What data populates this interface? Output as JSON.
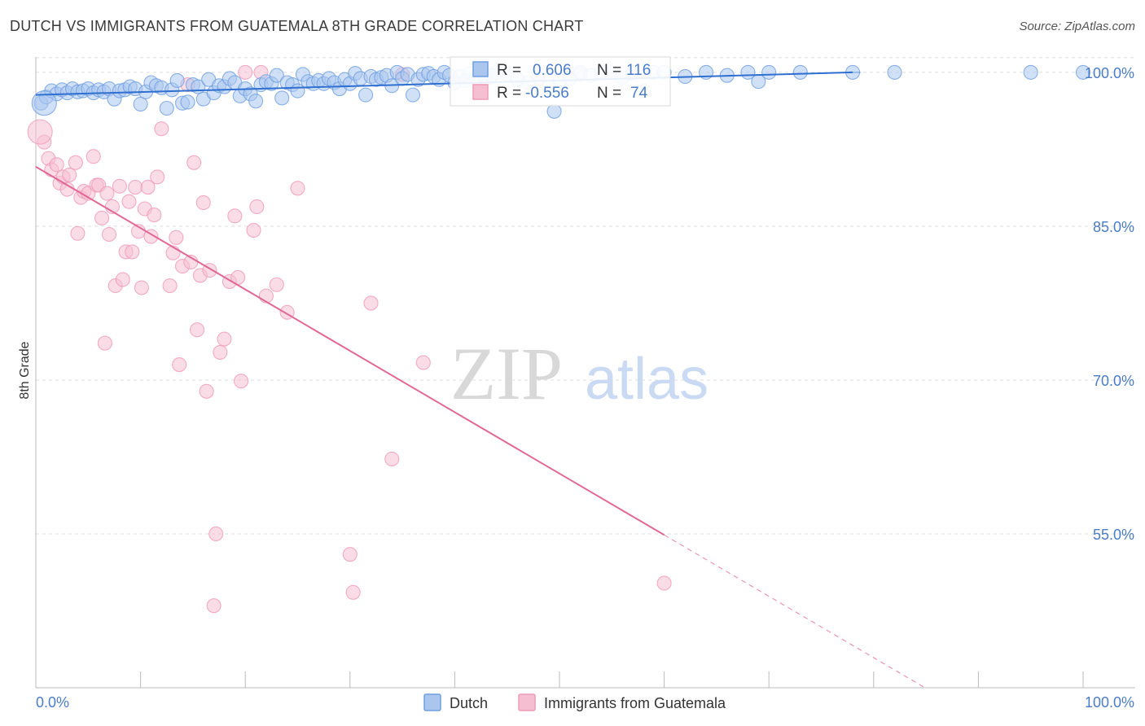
{
  "title": "DUTCH VS IMMIGRANTS FROM GUATEMALA 8TH GRADE CORRELATION CHART",
  "source": "Source: ZipAtlas.com",
  "watermark": {
    "zip": "ZIP",
    "atlas": "atlas"
  },
  "colors": {
    "dutch": "#6f9fe0",
    "dutch_fill": "#aac6ee",
    "dutch_line": "#2f6fd0",
    "guatemala": "#ef9ab8",
    "guatemala_fill": "#f6bfd1",
    "guatemala_line": "#e06896",
    "tick": "#4a7cc8",
    "grid": "#dddddd"
  },
  "legend": {
    "r_label": "R =",
    "n_label": "N =",
    "dutch": {
      "r": "0.606",
      "n": "116"
    },
    "guatemala": {
      "r": "-0.556",
      "n": "74"
    }
  },
  "chart_data": {
    "type": "scatter",
    "title": "DUTCH VS IMMIGRANTS FROM GUATEMALA 8TH GRADE CORRELATION CHART",
    "xlabel": "",
    "ylabel": "8th Grade",
    "xlim": [
      0,
      100
    ],
    "ylim": [
      40,
      101.5
    ],
    "x_tick_labels": {
      "left": "0.0%",
      "right": "100.0%"
    },
    "y_ticks": [
      {
        "value": 100,
        "label": "100.0%"
      },
      {
        "value": 85,
        "label": "85.0%"
      },
      {
        "value": 70,
        "label": "70.0%"
      },
      {
        "value": 55,
        "label": "55.0%"
      }
    ],
    "grid": true,
    "legend_position": "top-center",
    "series": [
      {
        "name": "Dutch",
        "color": "#6f9fe0",
        "trend": {
          "x0": 0,
          "y0": 97.8,
          "x1": 78,
          "y1": 100.0,
          "dashed_to_x": null
        },
        "points": [
          [
            0.5,
            97.0
          ],
          [
            1.0,
            97.6
          ],
          [
            1.5,
            98.2
          ],
          [
            2.0,
            97.9
          ],
          [
            2.5,
            98.3
          ],
          [
            3.0,
            98.0
          ],
          [
            3.5,
            98.4
          ],
          [
            4.0,
            98.1
          ],
          [
            4.5,
            98.2
          ],
          [
            5.0,
            98.4
          ],
          [
            5.5,
            98.0
          ],
          [
            6.0,
            98.3
          ],
          [
            6.5,
            98.1
          ],
          [
            7.0,
            98.4
          ],
          [
            7.5,
            97.4
          ],
          [
            8.0,
            98.2
          ],
          [
            8.5,
            98.3
          ],
          [
            9.0,
            98.6
          ],
          [
            9.5,
            98.4
          ],
          [
            10.0,
            96.9
          ],
          [
            10.5,
            98.1
          ],
          [
            11.0,
            99.0
          ],
          [
            11.5,
            98.7
          ],
          [
            12.0,
            98.5
          ],
          [
            12.5,
            96.5
          ],
          [
            13.0,
            98.3
          ],
          [
            13.5,
            99.2
          ],
          [
            14.0,
            97.0
          ],
          [
            14.5,
            97.1
          ],
          [
            15.0,
            98.8
          ],
          [
            15.5,
            98.6
          ],
          [
            16.0,
            97.4
          ],
          [
            16.5,
            99.3
          ],
          [
            17.0,
            98.0
          ],
          [
            17.5,
            98.7
          ],
          [
            18.0,
            98.6
          ],
          [
            18.5,
            99.4
          ],
          [
            19.0,
            99.0
          ],
          [
            19.5,
            97.7
          ],
          [
            20.0,
            98.4
          ],
          [
            20.5,
            97.9
          ],
          [
            21.0,
            97.2
          ],
          [
            21.5,
            98.8
          ],
          [
            22.0,
            99.1
          ],
          [
            22.5,
            98.9
          ],
          [
            23.0,
            99.7
          ],
          [
            23.5,
            97.5
          ],
          [
            24.0,
            99.0
          ],
          [
            24.5,
            98.8
          ],
          [
            25.0,
            98.2
          ],
          [
            25.5,
            99.8
          ],
          [
            26.0,
            99.1
          ],
          [
            26.5,
            98.9
          ],
          [
            27.0,
            99.2
          ],
          [
            27.5,
            98.9
          ],
          [
            28.0,
            99.4
          ],
          [
            28.5,
            99.0
          ],
          [
            29.0,
            98.4
          ],
          [
            29.5,
            99.3
          ],
          [
            30.0,
            98.9
          ],
          [
            30.5,
            99.9
          ],
          [
            31.0,
            99.4
          ],
          [
            31.5,
            97.8
          ],
          [
            32.0,
            99.6
          ],
          [
            32.5,
            99.3
          ],
          [
            33.0,
            99.5
          ],
          [
            33.5,
            99.7
          ],
          [
            34.0,
            98.7
          ],
          [
            34.5,
            100.0
          ],
          [
            35.0,
            99.4
          ],
          [
            35.5,
            99.8
          ],
          [
            36.0,
            97.8
          ],
          [
            36.5,
            99.3
          ],
          [
            37.0,
            99.8
          ],
          [
            37.5,
            99.9
          ],
          [
            38.0,
            99.6
          ],
          [
            38.5,
            99.3
          ],
          [
            39.0,
            100.0
          ],
          [
            39.5,
            99.7
          ],
          [
            40.0,
            99.0
          ],
          [
            40.5,
            99.6
          ],
          [
            41.0,
            99.2
          ],
          [
            41.5,
            99.9
          ],
          [
            42.0,
            99.4
          ],
          [
            42.5,
            100.0
          ],
          [
            43.0,
            99.4
          ],
          [
            43.5,
            99.7
          ],
          [
            44.0,
            100.0
          ],
          [
            45.0,
            99.8
          ],
          [
            46.0,
            99.3
          ],
          [
            47.0,
            99.0
          ],
          [
            48.0,
            99.8
          ],
          [
            49.0,
            98.6
          ],
          [
            50.0,
            99.2
          ],
          [
            51.0,
            99.4
          ],
          [
            52.0,
            100.0
          ],
          [
            53.0,
            99.7
          ],
          [
            54.0,
            100.0
          ],
          [
            55.0,
            100.0
          ],
          [
            56.0,
            99.5
          ],
          [
            57.0,
            99.9
          ],
          [
            58.0,
            98.2
          ],
          [
            59.0,
            100.0
          ],
          [
            60.0,
            100.0
          ],
          [
            62.0,
            99.6
          ],
          [
            64.0,
            100.0
          ],
          [
            66.0,
            99.7
          ],
          [
            68.0,
            100.0
          ],
          [
            69.0,
            99.1
          ],
          [
            70.0,
            100.0
          ],
          [
            73.0,
            100.0
          ],
          [
            78.0,
            100.0
          ],
          [
            82.0,
            100.0
          ],
          [
            95.0,
            100.0
          ],
          [
            100.0,
            100.0
          ],
          [
            49.5,
            96.2
          ]
        ],
        "large_points": [
          [
            0.8,
            97.0
          ]
        ]
      },
      {
        "name": "Immigrants from Guatemala",
        "color": "#ef9ab8",
        "trend": {
          "x0": 0,
          "y0": 90.8,
          "x1": 60,
          "y1": 54.9,
          "dashed_to_x": 85
        },
        "points": [
          [
            0.8,
            93.2
          ],
          [
            1.2,
            91.6
          ],
          [
            1.5,
            90.5
          ],
          [
            2.0,
            91.0
          ],
          [
            2.3,
            89.2
          ],
          [
            2.6,
            89.8
          ],
          [
            3.0,
            88.6
          ],
          [
            3.2,
            90.0
          ],
          [
            3.8,
            91.2
          ],
          [
            4.0,
            84.3
          ],
          [
            4.3,
            87.8
          ],
          [
            4.6,
            88.4
          ],
          [
            5.0,
            88.2
          ],
          [
            5.5,
            91.8
          ],
          [
            5.8,
            89.0
          ],
          [
            6.0,
            89.0
          ],
          [
            6.3,
            85.8
          ],
          [
            6.6,
            73.6
          ],
          [
            6.8,
            88.2
          ],
          [
            7.0,
            84.2
          ],
          [
            7.3,
            86.9
          ],
          [
            7.6,
            79.2
          ],
          [
            8.0,
            88.9
          ],
          [
            8.3,
            79.8
          ],
          [
            8.6,
            82.5
          ],
          [
            8.9,
            87.4
          ],
          [
            9.2,
            82.5
          ],
          [
            9.5,
            88.8
          ],
          [
            9.8,
            84.5
          ],
          [
            10.1,
            79.0
          ],
          [
            10.4,
            86.7
          ],
          [
            10.7,
            88.8
          ],
          [
            11.0,
            84.0
          ],
          [
            11.3,
            86.1
          ],
          [
            11.6,
            89.8
          ],
          [
            12.0,
            94.5
          ],
          [
            12.8,
            79.2
          ],
          [
            13.1,
            82.4
          ],
          [
            13.4,
            83.9
          ],
          [
            13.7,
            71.5
          ],
          [
            14.0,
            81.1
          ],
          [
            14.5,
            98.8
          ],
          [
            14.8,
            81.5
          ],
          [
            15.1,
            91.2
          ],
          [
            15.4,
            74.9
          ],
          [
            15.7,
            80.2
          ],
          [
            16.0,
            87.3
          ],
          [
            16.3,
            68.9
          ],
          [
            16.6,
            80.7
          ],
          [
            17.0,
            48.0
          ],
          [
            17.2,
            55.0
          ],
          [
            17.6,
            72.7
          ],
          [
            18.0,
            74.0
          ],
          [
            18.5,
            79.6
          ],
          [
            19.0,
            86.0
          ],
          [
            19.3,
            80.0
          ],
          [
            19.6,
            69.9
          ],
          [
            20.0,
            100.0
          ],
          [
            20.8,
            84.6
          ],
          [
            21.1,
            86.9
          ],
          [
            21.5,
            100.0
          ],
          [
            22.0,
            78.2
          ],
          [
            23.0,
            79.3
          ],
          [
            24.0,
            76.6
          ],
          [
            25.0,
            88.7
          ],
          [
            30.0,
            53.0
          ],
          [
            30.3,
            49.3
          ],
          [
            32.0,
            77.5
          ],
          [
            34.0,
            62.3
          ],
          [
            35.0,
            99.8
          ],
          [
            37.0,
            71.7
          ],
          [
            60.0,
            50.2
          ],
          [
            52.0,
            99.8
          ],
          [
            48.0,
            99.5
          ]
        ],
        "large_points": [
          [
            0.4,
            94.2
          ]
        ]
      }
    ]
  },
  "bottom_legend": [
    {
      "label": "Dutch",
      "series": "dutch"
    },
    {
      "label": "Immigrants from Guatemala",
      "series": "guatemala"
    }
  ]
}
